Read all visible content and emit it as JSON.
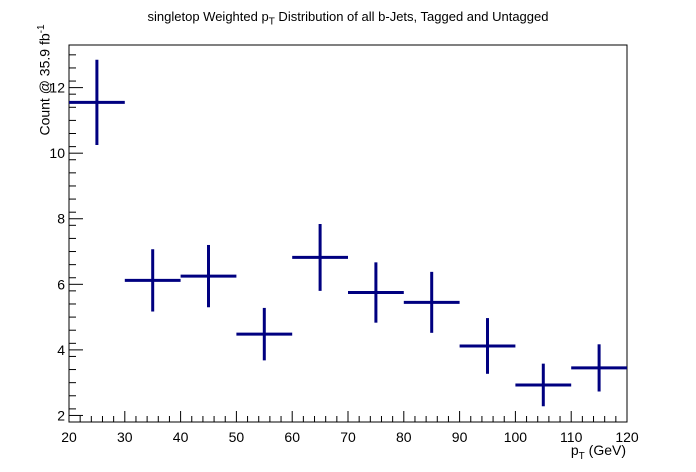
{
  "title": {
    "prefix": "singletop Weighted p",
    "sub": "T",
    "suffix": " Distribution of all b-Jets, Tagged and Untagged"
  },
  "chart_data": {
    "type": "scatter",
    "xlabel_main": "p",
    "xlabel_sub": "T",
    "xlabel_unit": " (GeV)",
    "ylabel_main": "Count @ 35.9 fb",
    "ylabel_sup": "-1",
    "xlim": [
      20,
      120
    ],
    "ylim": [
      1.8,
      13.3
    ],
    "x_ticks": [
      20,
      30,
      40,
      50,
      60,
      70,
      80,
      90,
      100,
      110,
      120
    ],
    "y_ticks": [
      2,
      4,
      6,
      8,
      10,
      12
    ],
    "color": "#000080",
    "points": [
      {
        "x": 25,
        "y": 11.55,
        "xerr": 5,
        "yerr": 1.3
      },
      {
        "x": 35,
        "y": 6.12,
        "xerr": 5,
        "yerr": 0.95
      },
      {
        "x": 45,
        "y": 6.25,
        "xerr": 5,
        "yerr": 0.95
      },
      {
        "x": 55,
        "y": 4.48,
        "xerr": 5,
        "yerr": 0.8
      },
      {
        "x": 65,
        "y": 6.82,
        "xerr": 5,
        "yerr": 1.02
      },
      {
        "x": 75,
        "y": 5.75,
        "xerr": 5,
        "yerr": 0.92
      },
      {
        "x": 85,
        "y": 5.45,
        "xerr": 5,
        "yerr": 0.93
      },
      {
        "x": 95,
        "y": 4.12,
        "xerr": 5,
        "yerr": 0.85
      },
      {
        "x": 105,
        "y": 2.93,
        "xerr": 5,
        "yerr": 0.65
      },
      {
        "x": 115,
        "y": 3.45,
        "xerr": 5,
        "yerr": 0.72
      }
    ]
  }
}
